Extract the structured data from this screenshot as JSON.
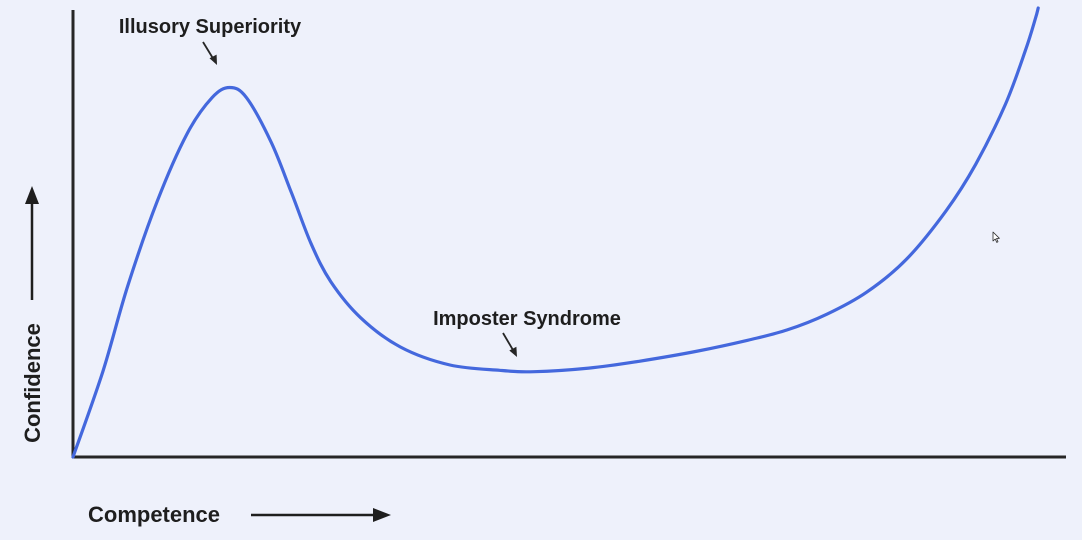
{
  "chart_data": {
    "type": "line",
    "title": "",
    "xlabel": "Competence",
    "ylabel": "Confidence",
    "x_ticks": [],
    "y_ticks": [],
    "grid": false,
    "legend": "none",
    "xlim": [
      0,
      100
    ],
    "ylim": [
      0,
      100
    ],
    "series": [
      {
        "color": "#4468dd",
        "points": [
          {
            "x": 0,
            "y": 0
          },
          {
            "x": 3,
            "y": 19
          },
          {
            "x": 5.5,
            "y": 38
          },
          {
            "x": 8.5,
            "y": 57
          },
          {
            "x": 11.5,
            "y": 72
          },
          {
            "x": 14,
            "y": 80
          },
          {
            "x": 15.8,
            "y": 82.3
          },
          {
            "x": 17.5,
            "y": 80
          },
          {
            "x": 20,
            "y": 70
          },
          {
            "x": 22,
            "y": 59
          },
          {
            "x": 24,
            "y": 47.5
          },
          {
            "x": 26,
            "y": 39
          },
          {
            "x": 29,
            "y": 31
          },
          {
            "x": 33,
            "y": 24.5
          },
          {
            "x": 38,
            "y": 20.5
          },
          {
            "x": 43,
            "y": 19.3
          },
          {
            "x": 46.5,
            "y": 19
          },
          {
            "x": 52,
            "y": 19.8
          },
          {
            "x": 57,
            "y": 21.3
          },
          {
            "x": 63,
            "y": 23.6
          },
          {
            "x": 68,
            "y": 26
          },
          {
            "x": 72,
            "y": 28.3
          },
          {
            "x": 76,
            "y": 31.8
          },
          {
            "x": 80,
            "y": 36.7
          },
          {
            "x": 84,
            "y": 44
          },
          {
            "x": 88,
            "y": 54.8
          },
          {
            "x": 91,
            "y": 65.2
          },
          {
            "x": 94,
            "y": 78.6
          },
          {
            "x": 96,
            "y": 90.5
          },
          {
            "x": 97,
            "y": 97.5
          },
          {
            "x": 97.3,
            "y": 100
          }
        ]
      }
    ],
    "annotations": [
      {
        "text": "Illusory Superiority",
        "x": 15.8,
        "y": 82.3
      },
      {
        "text": "Imposter Syndrome",
        "x": 46.5,
        "y": 19
      }
    ]
  },
  "colors": {
    "background": "#eef1fb",
    "curve": "#4468dd",
    "axis": "#262626",
    "text": "#1e1e1e"
  },
  "cursor_icon": "mouse-pointer-icon"
}
